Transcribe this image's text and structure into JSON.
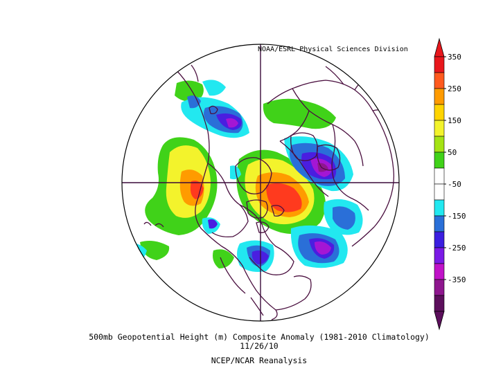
{
  "credit": "NOAA/ESRL Physical Sciences Division",
  "caption": {
    "title": "500mb Geopotential Height (m) Composite Anomaly (1981-2010 Climatology)",
    "date": "11/26/10",
    "source": "NCEP/NCAR Reanalysis"
  },
  "colorbar": {
    "levels": [
      {
        "label": "350",
        "color": "#e8171c"
      },
      {
        "label": "",
        "color": "#ff5a1e"
      },
      {
        "label": "250",
        "color": "#ff9b00"
      },
      {
        "label": "",
        "color": "#ffd400"
      },
      {
        "label": "150",
        "color": "#f3f32c"
      },
      {
        "label": "",
        "color": "#a4e314"
      },
      {
        "label": "50",
        "color": "#40d219"
      },
      {
        "label": "",
        "color": "#ffffff"
      },
      {
        "label": "-50",
        "color": "#ffffff"
      },
      {
        "label": "",
        "color": "#22e8f0"
      },
      {
        "label": "-150",
        "color": "#2a6fd8"
      },
      {
        "label": "",
        "color": "#3b1ee0"
      },
      {
        "label": "-250",
        "color": "#7a1ae6"
      },
      {
        "label": "",
        "color": "#c012c8"
      },
      {
        "label": "-350",
        "color": "#8e168e"
      },
      {
        "label": "",
        "color": "#5c0f5c"
      }
    ],
    "max_color": "#e8171c",
    "min_color": "#5c0f5c"
  },
  "map_colors": {
    "coast": "#4a0f3f",
    "grid": "#3a0a3a"
  }
}
